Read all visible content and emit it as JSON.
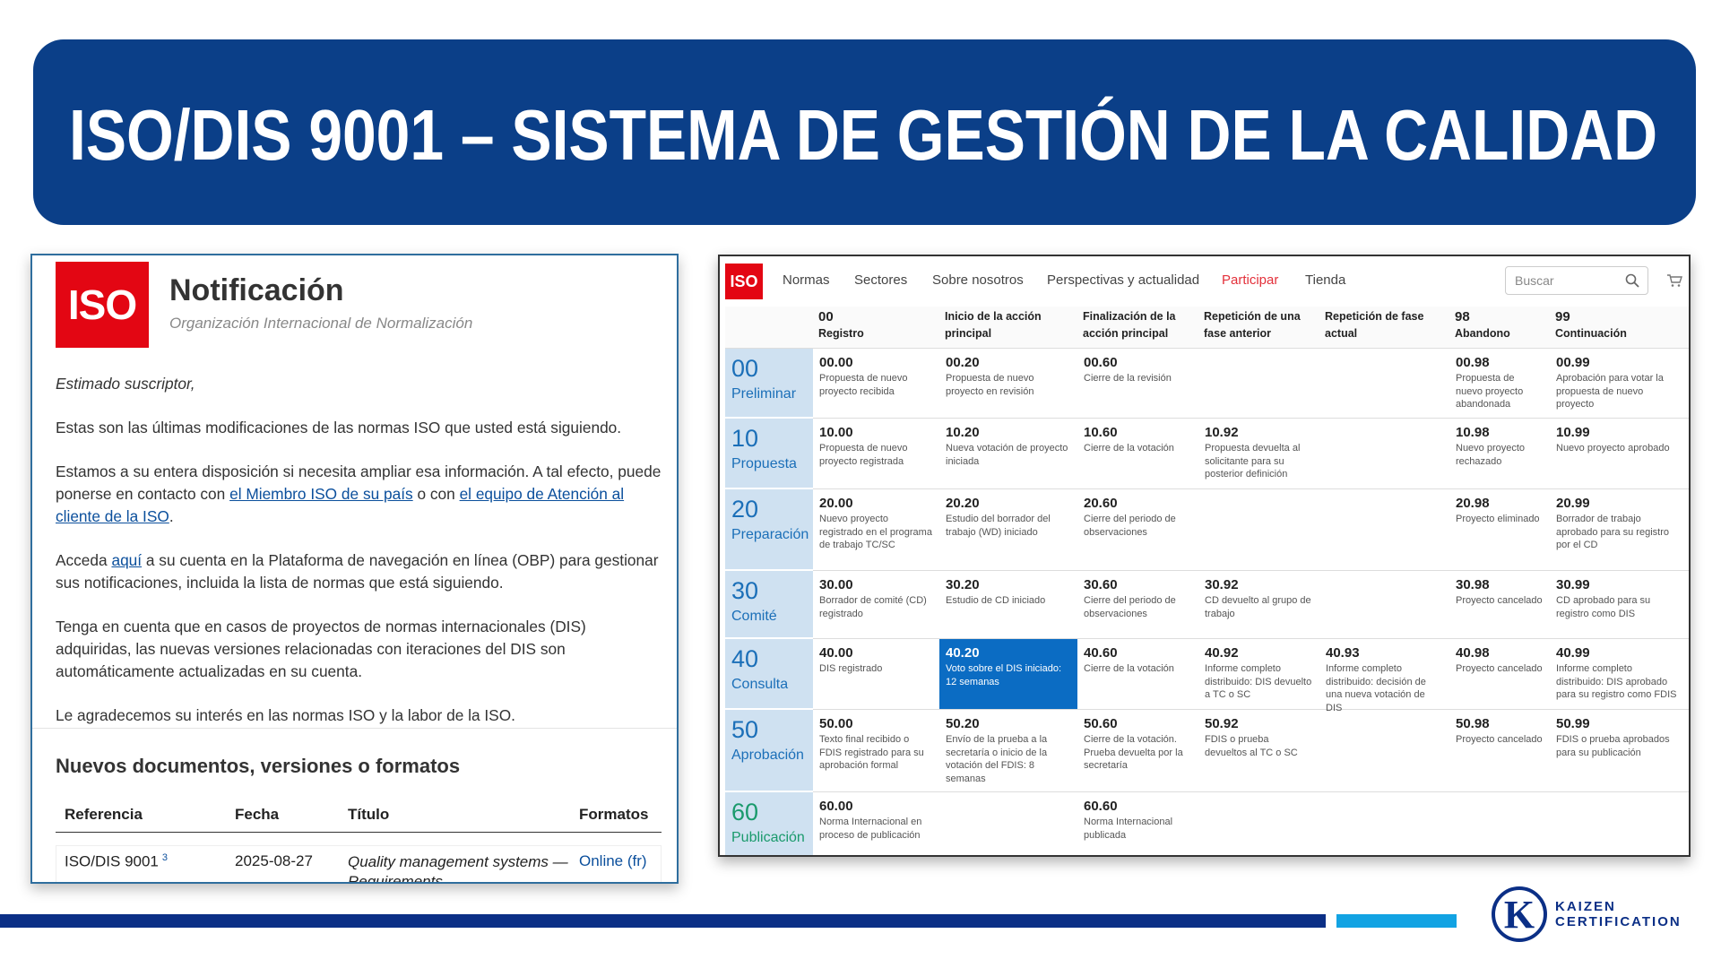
{
  "header": {
    "title": "ISO/DIS 9001 – SISTEMA DE GESTIÓN DE LA CALIDAD"
  },
  "notification": {
    "logo": "ISO",
    "title": "Notificación",
    "subtitle": "Organización Internacional de Normalización",
    "greeting": "Estimado suscriptor,",
    "paragraphs": [
      [
        {
          "text": "Estas son las últimas modificaciones de las normas ISO que usted está siguiendo."
        }
      ],
      [
        {
          "text": "Estamos a su entera disposición si necesita ampliar esa información. A tal efecto, puede ponerse en contacto con "
        },
        {
          "text": "el Miembro ISO de su país",
          "link": true
        },
        {
          "text": " o con "
        },
        {
          "text": "el equipo de Atención al cliente de la ISO",
          "link": true
        },
        {
          "text": "."
        }
      ],
      [
        {
          "text": "Acceda "
        },
        {
          "text": "aquí",
          "link": true
        },
        {
          "text": " a su cuenta en la Plataforma de navegación en línea (OBP) para gestionar sus notificaciones, incluida la lista de normas que está siguiendo."
        }
      ],
      [
        {
          "text": "Tenga en cuenta que en casos de proyectos de normas internacionales (DIS) adquiridas, las nuevas versiones relacionadas con iteraciones del DIS son automáticamente actualizadas en su cuenta."
        }
      ],
      [
        {
          "text": "Le agradecemos su interés en las normas ISO y la labor de la ISO."
        }
      ]
    ],
    "section_title": "Nuevos documentos, versiones o formatos",
    "table": {
      "headers": [
        "Referencia",
        "Fecha",
        "Título",
        "Formatos"
      ],
      "rows": [
        {
          "reference": "ISO/DIS 9001",
          "note": "3",
          "date": "2025-08-27",
          "title": "Quality management systems — Requirements",
          "format": "Online (fr)"
        }
      ]
    }
  },
  "stages": {
    "logo": "ISO",
    "nav": [
      {
        "text": "Normas"
      },
      {
        "text": "Sectores"
      },
      {
        "text": "Sobre nosotros"
      },
      {
        "text": "Perspectivas y actualidad"
      },
      {
        "text": "Participar",
        "active": true
      },
      {
        "text": "Tienda"
      }
    ],
    "search": "Buscar",
    "columns": [
      {
        "code": "00",
        "label": "Registro"
      },
      {
        "label": "Inicio de la acción principal"
      },
      {
        "label": "Finalización de la acción principal"
      },
      {
        "label": "Repetición de una fase anterior"
      },
      {
        "label": "Repetición de fase actual"
      },
      {
        "code": "98",
        "label": "Abandono"
      },
      {
        "code": "99",
        "label": "Continuación"
      }
    ],
    "rows": [
      {
        "code": "00",
        "label": "Preliminar",
        "cells": [
          {
            "code": "00.00",
            "text": "Propuesta de nuevo proyecto recibida"
          },
          {
            "code": "00.20",
            "text": "Propuesta de nuevo proyecto en revisión"
          },
          {
            "code": "00.60",
            "text": "Cierre de la revisión"
          },
          null,
          null,
          {
            "code": "00.98",
            "text": "Propuesta de nuevo proyecto abandonada"
          },
          {
            "code": "00.99",
            "text": "Aprobación para votar la propuesta de nuevo proyecto"
          }
        ]
      },
      {
        "code": "10",
        "label": "Propuesta",
        "cells": [
          {
            "code": "10.00",
            "text": "Propuesta de nuevo proyecto registrada"
          },
          {
            "code": "10.20",
            "text": "Nueva votación de proyecto iniciada"
          },
          {
            "code": "10.60",
            "text": "Cierre de la votación"
          },
          {
            "code": "10.92",
            "text": "Propuesta devuelta al solicitante para su posterior definición"
          },
          null,
          {
            "code": "10.98",
            "text": "Nuevo proyecto rechazado"
          },
          {
            "code": "10.99",
            "text": "Nuevo proyecto aprobado"
          }
        ]
      },
      {
        "code": "20",
        "label": "Preparación",
        "cells": [
          {
            "code": "20.00",
            "text": "Nuevo proyecto registrado en el programa de trabajo TC/SC"
          },
          {
            "code": "20.20",
            "text": "Estudio del borrador del trabajo (WD) iniciado"
          },
          {
            "code": "20.60",
            "text": "Cierre del periodo de observaciones"
          },
          null,
          null,
          {
            "code": "20.98",
            "text": "Proyecto eliminado"
          },
          {
            "code": "20.99",
            "text": "Borrador de trabajo aprobado para su registro por el CD"
          }
        ]
      },
      {
        "code": "30",
        "label": "Comité",
        "cells": [
          {
            "code": "30.00",
            "text": "Borrador de comité (CD) registrado"
          },
          {
            "code": "30.20",
            "text": "Estudio de CD iniciado"
          },
          {
            "code": "30.60",
            "text": "Cierre del periodo de observaciones"
          },
          {
            "code": "30.92",
            "text": "CD devuelto al grupo de trabajo"
          },
          null,
          {
            "code": "30.98",
            "text": "Proyecto cancelado"
          },
          {
            "code": "30.99",
            "text": "CD aprobado para su registro como DIS"
          }
        ]
      },
      {
        "code": "40",
        "label": "Consulta",
        "cells": [
          {
            "code": "40.00",
            "text": "DIS registrado"
          },
          {
            "code": "40.20",
            "text": "Voto sobre el DIS iniciado: 12 semanas",
            "highlighted": true
          },
          {
            "code": "40.60",
            "text": "Cierre de la votación"
          },
          {
            "code": "40.92",
            "text": "Informe completo distribuido: DIS devuelto a TC o SC"
          },
          {
            "code": "40.93",
            "text": "Informe completo distribuido: decisión de una nueva votación de DIS"
          },
          {
            "code": "40.98",
            "text": "Proyecto cancelado"
          },
          {
            "code": "40.99",
            "text": "Informe completo distribuido: DIS aprobado para su registro como FDIS"
          }
        ]
      },
      {
        "code": "50",
        "label": "Aprobación",
        "cells": [
          {
            "code": "50.00",
            "text": "Texto final recibido o FDIS registrado para su aprobación formal"
          },
          {
            "code": "50.20",
            "text": "Envío de la prueba a la secretaría o inicio de la votación del FDIS: 8 semanas"
          },
          {
            "code": "50.60",
            "text": "Cierre de la votación. Prueba devuelta por la secretaría"
          },
          {
            "code": "50.92",
            "text": "FDIS o prueba devueltos al TC o SC"
          },
          null,
          {
            "code": "50.98",
            "text": "Proyecto cancelado"
          },
          {
            "code": "50.99",
            "text": "FDIS o prueba aprobados para su publicación"
          }
        ]
      },
      {
        "code": "60",
        "label": "Publicación",
        "color": "#1a9a6c",
        "cells": [
          {
            "code": "60.00",
            "text": "Norma Internacional en proceso de publicación"
          },
          null,
          {
            "code": "60.60",
            "text": "Norma Internacional publicada"
          },
          null,
          null,
          null,
          null
        ]
      }
    ]
  },
  "footer": {
    "brand": "KAIZEN",
    "brand_sub": "CERTIFICATION",
    "brand_letter": "K"
  }
}
